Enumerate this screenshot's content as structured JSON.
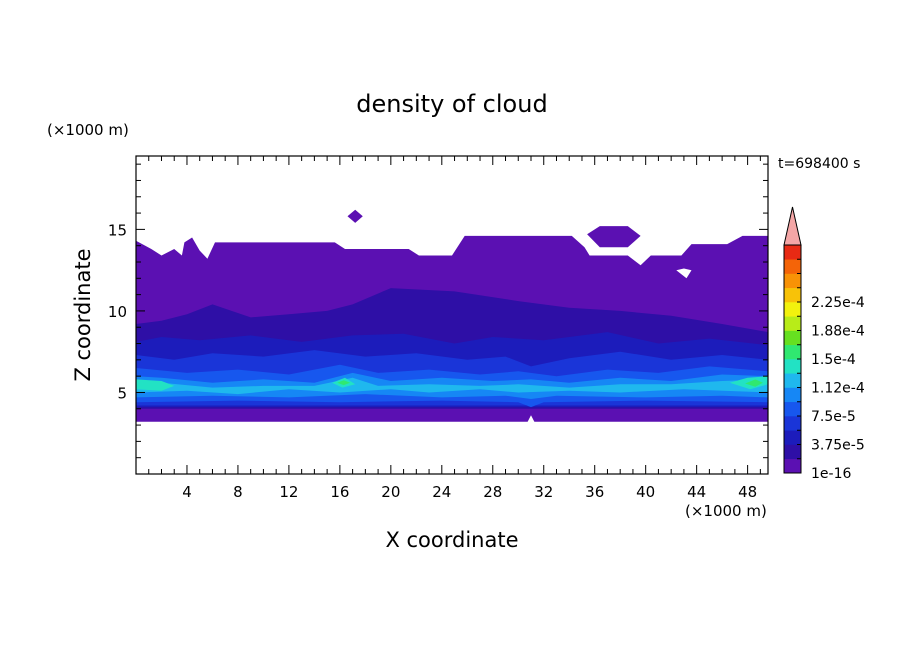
{
  "chart_data": {
    "type": "heatmap",
    "title": "density of cloud",
    "xlabel": "X coordinate",
    "ylabel": "Z coordinate",
    "x_unit": "(×1000 m)",
    "y_unit": "(×1000 m)",
    "time_label": "t=698400 s",
    "xlim": [
      0,
      49.6
    ],
    "ylim": [
      0,
      19.5
    ],
    "x_ticks": [
      {
        "value": 4,
        "label": "4"
      },
      {
        "value": 8,
        "label": "8"
      },
      {
        "value": 12,
        "label": "12"
      },
      {
        "value": 16,
        "label": "16"
      },
      {
        "value": 20,
        "label": "20"
      },
      {
        "value": 24,
        "label": "24"
      },
      {
        "value": 28,
        "label": "28"
      },
      {
        "value": 32,
        "label": "32"
      },
      {
        "value": 36,
        "label": "36"
      },
      {
        "value": 40,
        "label": "40"
      },
      {
        "value": 44,
        "label": "44"
      },
      {
        "value": 48,
        "label": "48"
      }
    ],
    "y_ticks": [
      {
        "value": 5,
        "label": "5"
      },
      {
        "value": 10,
        "label": "10"
      },
      {
        "value": 15,
        "label": "15"
      }
    ],
    "colorbar": {
      "levels": [
        "1e-16",
        "3.75e-5",
        "7.5e-5",
        "1.12e-4",
        "1.5e-4",
        "1.88e-4",
        "2.25e-4"
      ],
      "colors": [
        "#5b10b2",
        "#2e0fa6",
        "#1c1cbb",
        "#1a35d8",
        "#1757ee",
        "#1687f5",
        "#1fb8ee",
        "#22e2c4",
        "#30e870",
        "#66e020",
        "#b8ec18",
        "#f2f20e",
        "#f8c208",
        "#f89206",
        "#f46408",
        "#e82a14"
      ],
      "extend_color": "#f4a6a6"
    },
    "regions": [
      {
        "level": 0,
        "points": [
          [
            0,
            3.2
          ],
          [
            49.6,
            3.2
          ],
          [
            49.6,
            14.6
          ],
          [
            47.6,
            14.6
          ],
          [
            46.4,
            14.1
          ],
          [
            43.6,
            14.1
          ],
          [
            42.8,
            13.4
          ],
          [
            40.4,
            13.4
          ],
          [
            39.6,
            12.8
          ],
          [
            38.6,
            13.4
          ],
          [
            35.6,
            13.4
          ],
          [
            35.2,
            13.9
          ],
          [
            34.2,
            14.6
          ],
          [
            25.8,
            14.6
          ],
          [
            24.8,
            13.4
          ],
          [
            22.2,
            13.4
          ],
          [
            21.4,
            13.8
          ],
          [
            16.4,
            13.8
          ],
          [
            15.6,
            14.2
          ],
          [
            6.2,
            14.2
          ],
          [
            5.6,
            13.2
          ],
          [
            5.0,
            13.7
          ],
          [
            4.4,
            14.5
          ],
          [
            3.8,
            14.2
          ],
          [
            3.6,
            13.4
          ],
          [
            3.0,
            13.8
          ],
          [
            2.0,
            13.4
          ],
          [
            1.2,
            13.8
          ],
          [
            0,
            14.3
          ]
        ]
      },
      {
        "level": 0,
        "points": [
          [
            17.2,
            16.2
          ],
          [
            17.8,
            15.8
          ],
          [
            17.2,
            15.4
          ],
          [
            16.6,
            15.8
          ]
        ]
      },
      {
        "level": 0,
        "points": [
          [
            35.4,
            14.7
          ],
          [
            36.4,
            15.2
          ],
          [
            38.6,
            15.2
          ],
          [
            39.6,
            14.6
          ],
          [
            38.6,
            13.9
          ],
          [
            36.4,
            13.9
          ]
        ]
      },
      {
        "level": 1,
        "points": [
          [
            0,
            4.0
          ],
          [
            49.6,
            4.0
          ],
          [
            49.6,
            8.7
          ],
          [
            46,
            9.2
          ],
          [
            42,
            9.7
          ],
          [
            38,
            10.0
          ],
          [
            34,
            10.2
          ],
          [
            30,
            10.6
          ],
          [
            25,
            11.2
          ],
          [
            20,
            11.4
          ],
          [
            17,
            10.4
          ],
          [
            15,
            10.0
          ],
          [
            12,
            9.8
          ],
          [
            9,
            9.6
          ],
          [
            6,
            10.4
          ],
          [
            4,
            9.8
          ],
          [
            2,
            9.4
          ],
          [
            0,
            9.2
          ]
        ]
      },
      {
        "level": 2,
        "points": [
          [
            0,
            4.1
          ],
          [
            49.6,
            4.1
          ],
          [
            49.6,
            7.9
          ],
          [
            45,
            8.3
          ],
          [
            41,
            8.0
          ],
          [
            37,
            8.7
          ],
          [
            32,
            8.2
          ],
          [
            28,
            8.4
          ],
          [
            25,
            8.0
          ],
          [
            21,
            8.6
          ],
          [
            17,
            8.5
          ],
          [
            13,
            8.1
          ],
          [
            9,
            8.5
          ],
          [
            5,
            8.2
          ],
          [
            2,
            8.4
          ],
          [
            0,
            8.1
          ]
        ]
      },
      {
        "level": 3,
        "points": [
          [
            0,
            4.2
          ],
          [
            49.6,
            4.2
          ],
          [
            49.6,
            7.0
          ],
          [
            46,
            7.3
          ],
          [
            42,
            7.0
          ],
          [
            38,
            7.5
          ],
          [
            34,
            7.1
          ],
          [
            31,
            6.6
          ],
          [
            29,
            7.2
          ],
          [
            26,
            7.0
          ],
          [
            22,
            7.4
          ],
          [
            18,
            7.2
          ],
          [
            14,
            7.6
          ],
          [
            10,
            7.2
          ],
          [
            6,
            7.4
          ],
          [
            3,
            7.0
          ],
          [
            0,
            7.3
          ]
        ]
      },
      {
        "level": 4,
        "points": [
          [
            0,
            4.4
          ],
          [
            8,
            4.5
          ],
          [
            16,
            4.4
          ],
          [
            24,
            4.5
          ],
          [
            30,
            4.4
          ],
          [
            31,
            4.1
          ],
          [
            32,
            4.4
          ],
          [
            40,
            4.5
          ],
          [
            49.6,
            4.4
          ],
          [
            49.6,
            6.3
          ],
          [
            45,
            6.6
          ],
          [
            41,
            6.2
          ],
          [
            37,
            6.4
          ],
          [
            33,
            6.0
          ],
          [
            30,
            6.3
          ],
          [
            27,
            6.1
          ],
          [
            23,
            6.4
          ],
          [
            19,
            6.2
          ],
          [
            16,
            6.7
          ],
          [
            12,
            6.1
          ],
          [
            8,
            6.4
          ],
          [
            4,
            6.2
          ],
          [
            0,
            6.5
          ]
        ]
      },
      {
        "level": 5,
        "points": [
          [
            0,
            4.7
          ],
          [
            6,
            4.8
          ],
          [
            12,
            4.7
          ],
          [
            18,
            4.9
          ],
          [
            24,
            4.7
          ],
          [
            29,
            4.8
          ],
          [
            31,
            4.6
          ],
          [
            33,
            4.8
          ],
          [
            40,
            4.7
          ],
          [
            46,
            4.8
          ],
          [
            49.6,
            4.7
          ],
          [
            49.6,
            6.0
          ],
          [
            46,
            6.1
          ],
          [
            42,
            5.7
          ],
          [
            38,
            5.9
          ],
          [
            34,
            5.6
          ],
          [
            31,
            5.8
          ],
          [
            28,
            5.7
          ],
          [
            24,
            5.9
          ],
          [
            20,
            5.7
          ],
          [
            17,
            6.2
          ],
          [
            14,
            5.6
          ],
          [
            10,
            5.8
          ],
          [
            6,
            5.6
          ],
          [
            2,
            5.9
          ],
          [
            0,
            6.0
          ]
        ]
      },
      {
        "level": 6,
        "points": [
          [
            0,
            5.0
          ],
          [
            4,
            5.1
          ],
          [
            8,
            4.9
          ],
          [
            12,
            5.2
          ],
          [
            16,
            5.0
          ],
          [
            20,
            5.2
          ],
          [
            23,
            5.0
          ],
          [
            27,
            5.2
          ],
          [
            30,
            5.0
          ],
          [
            34,
            5.1
          ],
          [
            38,
            5.0
          ],
          [
            43,
            5.2
          ],
          [
            49.6,
            5.0
          ],
          [
            49.6,
            5.8
          ],
          [
            46,
            5.7
          ],
          [
            42,
            5.5
          ],
          [
            38,
            5.5
          ],
          [
            34,
            5.3
          ],
          [
            30,
            5.5
          ],
          [
            27,
            5.4
          ],
          [
            23,
            5.5
          ],
          [
            19,
            5.4
          ],
          [
            17,
            5.9
          ],
          [
            14,
            5.4
          ],
          [
            10,
            5.4
          ],
          [
            6,
            5.3
          ],
          [
            2,
            5.6
          ],
          [
            0,
            5.8
          ]
        ]
      },
      {
        "level": 7,
        "points": [
          [
            0,
            5.2
          ],
          [
            2,
            5.1
          ],
          [
            3,
            5.4
          ],
          [
            2,
            5.7
          ],
          [
            0,
            5.8
          ]
        ]
      },
      {
        "level": 7,
        "points": [
          [
            15.4,
            5.6
          ],
          [
            16.2,
            5.3
          ],
          [
            17.2,
            5.5
          ],
          [
            16.4,
            5.9
          ]
        ]
      },
      {
        "level": 7,
        "points": [
          [
            46.6,
            5.6
          ],
          [
            48.2,
            5.2
          ],
          [
            49.6,
            5.5
          ],
          [
            49.6,
            6.0
          ],
          [
            48.0,
            5.9
          ]
        ]
      },
      {
        "level": 8,
        "points": [
          [
            15.8,
            5.6
          ],
          [
            16.3,
            5.45
          ],
          [
            16.8,
            5.6
          ],
          [
            16.3,
            5.75
          ]
        ]
      },
      {
        "level": 8,
        "points": [
          [
            47.8,
            5.55
          ],
          [
            48.6,
            5.35
          ],
          [
            49.2,
            5.6
          ],
          [
            48.6,
            5.8
          ]
        ]
      }
    ],
    "white_regions": [
      {
        "points": [
          [
            30.6,
            3.0
          ],
          [
            31.4,
            3.0
          ],
          [
            31.0,
            3.6
          ]
        ]
      },
      {
        "points": [
          [
            42.4,
            12.5
          ],
          [
            43.2,
            12.0
          ],
          [
            43.6,
            12.5
          ],
          [
            43.0,
            12.6
          ]
        ]
      }
    ]
  }
}
